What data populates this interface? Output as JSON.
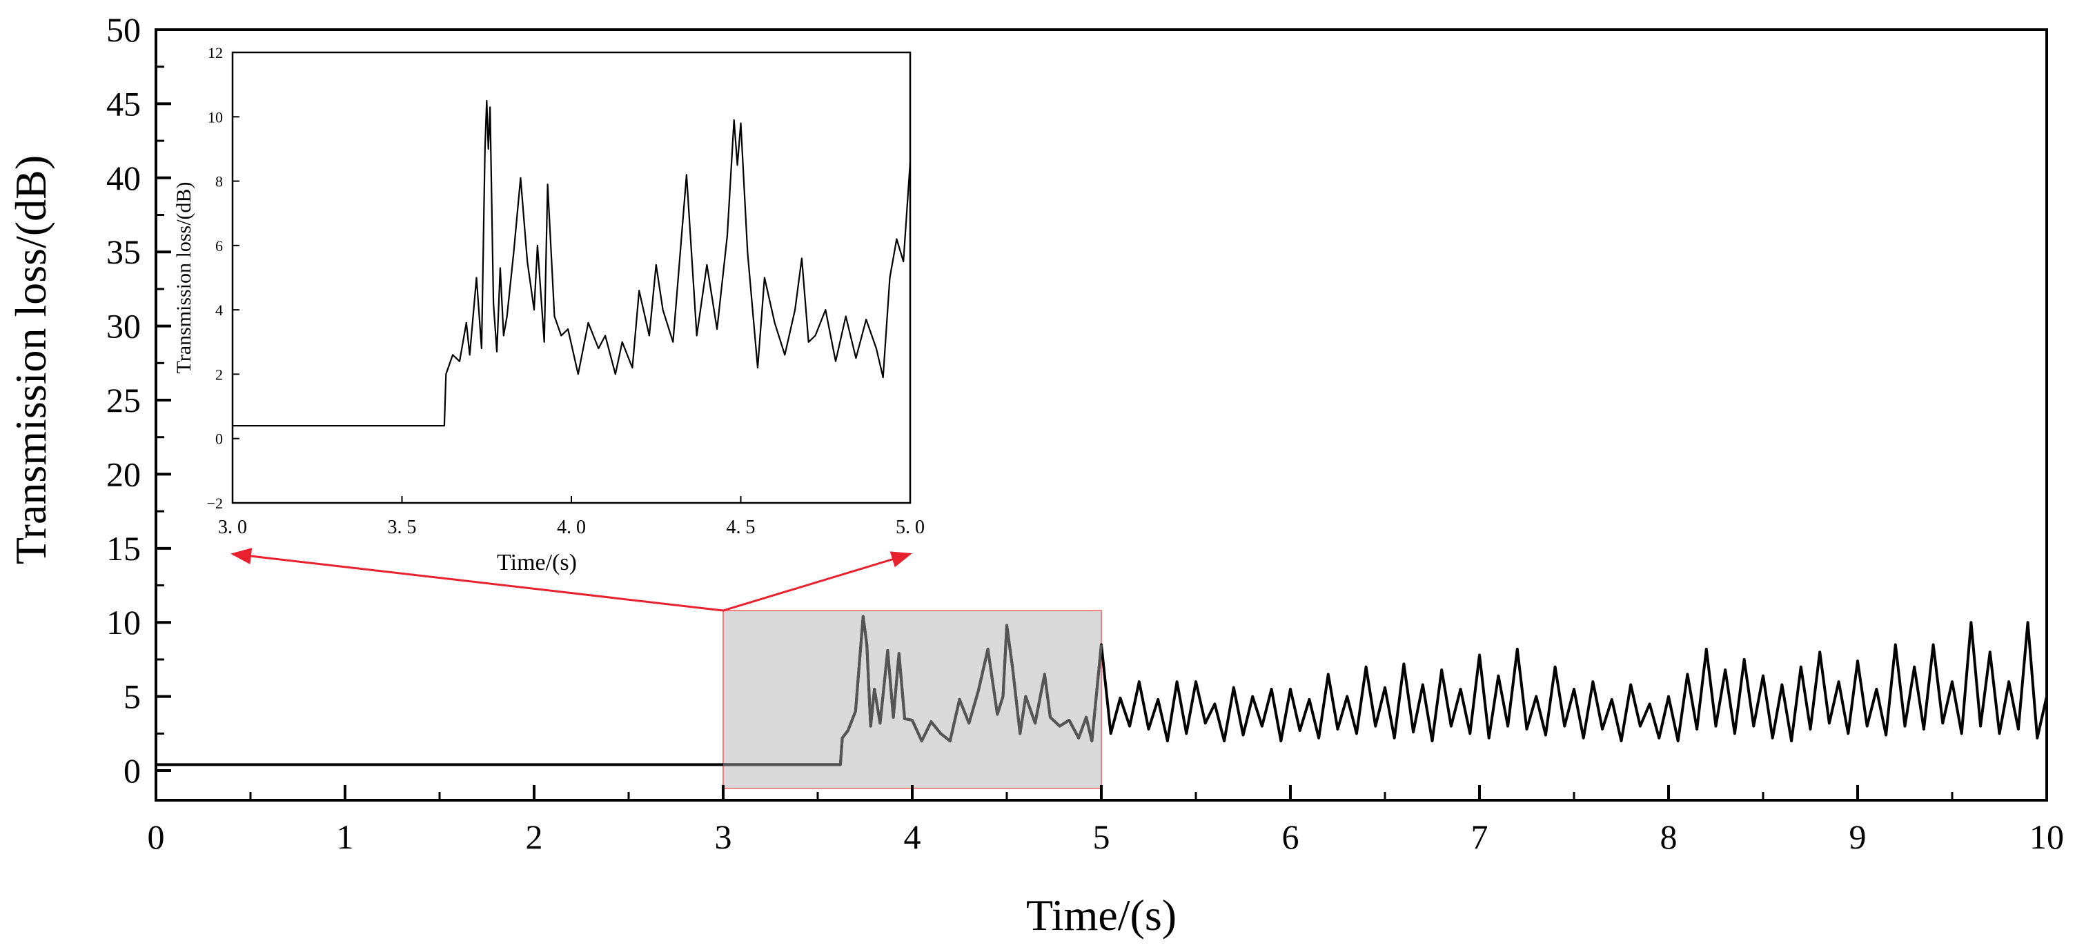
{
  "chart_data": [
    {
      "type": "line",
      "role": "main",
      "title": "",
      "xlabel": "Time/(s)",
      "ylabel": "Transmission loss/(dB)",
      "xlim": [
        0,
        10
      ],
      "ylim": [
        -2,
        50
      ],
      "xticks": [
        0,
        1,
        2,
        3,
        4,
        5,
        6,
        7,
        8,
        9,
        10
      ],
      "xtick_labels": [
        "0",
        "1",
        "2",
        "3",
        "4",
        "5",
        "6",
        "7",
        "8",
        "9",
        "10"
      ],
      "yticks": [
        0,
        5,
        10,
        15,
        20,
        25,
        30,
        35,
        40,
        45,
        50
      ],
      "ytick_labels": [
        "0",
        "5",
        "10",
        "15",
        "20",
        "25",
        "30",
        "35",
        "40",
        "45",
        "50"
      ],
      "grid": false,
      "series": [
        {
          "name": "Transmission loss",
          "color": "#000000",
          "x": [
            0,
            0.5,
            1.0,
            1.5,
            2.0,
            2.5,
            3.0,
            3.5,
            3.62,
            3.63,
            3.66,
            3.7,
            3.74,
            3.76,
            3.78,
            3.8,
            3.83,
            3.87,
            3.9,
            3.93,
            3.96,
            4.0,
            4.05,
            4.1,
            4.15,
            4.2,
            4.25,
            4.3,
            4.35,
            4.4,
            4.45,
            4.48,
            4.5,
            4.53,
            4.57,
            4.6,
            4.65,
            4.7,
            4.73,
            4.78,
            4.83,
            4.88,
            4.92,
            4.95,
            5.0,
            5.05,
            5.1,
            5.15,
            5.2,
            5.25,
            5.3,
            5.35,
            5.4,
            5.45,
            5.5,
            5.55,
            5.6,
            5.65,
            5.7,
            5.75,
            5.8,
            5.85,
            5.9,
            5.95,
            6.0,
            6.05,
            6.1,
            6.15,
            6.2,
            6.25,
            6.3,
            6.35,
            6.4,
            6.45,
            6.5,
            6.55,
            6.6,
            6.65,
            6.7,
            6.75,
            6.8,
            6.85,
            6.9,
            6.95,
            7.0,
            7.05,
            7.1,
            7.15,
            7.2,
            7.25,
            7.3,
            7.35,
            7.4,
            7.45,
            7.5,
            7.55,
            7.6,
            7.65,
            7.7,
            7.75,
            7.8,
            7.85,
            7.9,
            7.95,
            8.0,
            8.05,
            8.1,
            8.15,
            8.2,
            8.25,
            8.3,
            8.35,
            8.4,
            8.45,
            8.5,
            8.55,
            8.6,
            8.65,
            8.7,
            8.75,
            8.8,
            8.85,
            8.9,
            8.95,
            9.0,
            9.05,
            9.1,
            9.15,
            9.2,
            9.25,
            9.3,
            9.35,
            9.4,
            9.45,
            9.5,
            9.55,
            9.6,
            9.65,
            9.7,
            9.75,
            9.8,
            9.85,
            9.9,
            9.95,
            10.0
          ],
          "y": [
            0.4,
            0.4,
            0.4,
            0.4,
            0.4,
            0.4,
            0.4,
            0.4,
            0.4,
            2.2,
            2.7,
            4.0,
            10.4,
            8.5,
            3.0,
            5.5,
            3.2,
            8.1,
            3.6,
            7.9,
            3.5,
            3.4,
            2.0,
            3.3,
            2.5,
            2.0,
            4.8,
            3.2,
            5.4,
            8.2,
            3.8,
            5.0,
            9.8,
            7.0,
            2.5,
            5.0,
            3.2,
            6.5,
            3.6,
            3.0,
            3.4,
            2.2,
            3.6,
            2.0,
            8.5,
            2.5,
            4.9,
            3.0,
            6.0,
            2.8,
            4.8,
            2.0,
            6.0,
            2.5,
            6.0,
            3.2,
            4.5,
            2.0,
            5.6,
            2.4,
            5.0,
            3.0,
            5.5,
            2.0,
            5.5,
            2.7,
            4.8,
            2.2,
            6.5,
            2.8,
            5.0,
            2.5,
            7.0,
            3.0,
            5.6,
            2.2,
            7.2,
            2.6,
            5.8,
            2.0,
            6.8,
            3.0,
            5.5,
            2.5,
            7.8,
            2.2,
            6.4,
            3.0,
            8.2,
            2.8,
            5.0,
            2.4,
            7.0,
            3.0,
            5.5,
            2.2,
            6.0,
            2.8,
            4.8,
            2.0,
            5.8,
            3.0,
            4.5,
            2.2,
            5.0,
            2.0,
            6.5,
            2.8,
            8.2,
            3.0,
            6.8,
            2.5,
            7.5,
            3.0,
            6.4,
            2.2,
            5.8,
            2.0,
            7.0,
            2.8,
            8.0,
            3.2,
            6.0,
            2.5,
            7.4,
            3.0,
            5.5,
            2.4,
            8.5,
            3.0,
            7.0,
            2.8,
            8.5,
            3.2,
            6.0,
            2.5,
            10.0,
            3.0,
            8.0,
            2.5,
            6.0,
            2.8,
            10.0,
            2.2,
            5.0
          ]
        }
      ],
      "highlight_region": {
        "x_range": [
          3.0,
          5.0
        ],
        "y_range": [
          -1.2,
          10.8
        ],
        "fill": "#d9d9d9",
        "stroke": "#f08080"
      },
      "annotation_arrows": [
        {
          "from": [
            3.0,
            10.8
          ],
          "to_inset_x": 3.0,
          "color": "#e8212e"
        },
        {
          "from": [
            3.0,
            10.8
          ],
          "to_inset_x": 5.0,
          "color": "#e8212e"
        }
      ]
    },
    {
      "type": "line",
      "role": "inset",
      "title": "",
      "xlabel": "Time/(s)",
      "ylabel": "Transmission loss/(dB)",
      "xlim": [
        3.0,
        5.0
      ],
      "ylim": [
        -2,
        12
      ],
      "xticks": [
        3.0,
        3.5,
        4.0,
        4.5,
        5.0
      ],
      "xtick_labels": [
        "3. 0",
        "3. 5",
        "4. 0",
        "4. 5",
        "5. 0"
      ],
      "yticks": [
        -2,
        0,
        2,
        4,
        6,
        8,
        10,
        12
      ],
      "ytick_labels": [
        "−2",
        "0",
        "2",
        "4",
        "6",
        "8",
        "10",
        "12"
      ],
      "grid": false,
      "series": [
        {
          "name": "Transmission loss (zoom)",
          "color": "#000000",
          "x": [
            3.0,
            3.2,
            3.4,
            3.6,
            3.625,
            3.63,
            3.65,
            3.67,
            3.69,
            3.7,
            3.72,
            3.735,
            3.745,
            3.75,
            3.755,
            3.76,
            3.77,
            3.78,
            3.79,
            3.8,
            3.81,
            3.83,
            3.85,
            3.87,
            3.89,
            3.9,
            3.92,
            3.93,
            3.95,
            3.97,
            3.99,
            4.02,
            4.05,
            4.08,
            4.1,
            4.13,
            4.15,
            4.18,
            4.2,
            4.23,
            4.25,
            4.27,
            4.3,
            4.32,
            4.34,
            4.37,
            4.4,
            4.43,
            4.46,
            4.48,
            4.49,
            4.5,
            4.52,
            4.55,
            4.57,
            4.6,
            4.63,
            4.66,
            4.68,
            4.7,
            4.72,
            4.75,
            4.78,
            4.81,
            4.84,
            4.87,
            4.9,
            4.92,
            4.94,
            4.96,
            4.98,
            5.0
          ],
          "y": [
            0.4,
            0.4,
            0.4,
            0.4,
            0.4,
            2.0,
            2.6,
            2.4,
            3.6,
            2.6,
            5.0,
            2.8,
            9.0,
            10.5,
            9.0,
            10.3,
            4.2,
            2.7,
            5.3,
            3.2,
            3.8,
            5.8,
            8.1,
            5.5,
            4.0,
            6.0,
            3.0,
            7.9,
            3.8,
            3.2,
            3.4,
            2.0,
            3.6,
            2.8,
            3.2,
            2.0,
            3.0,
            2.2,
            4.6,
            3.2,
            5.4,
            4.0,
            3.0,
            5.6,
            8.2,
            3.2,
            5.4,
            3.4,
            6.3,
            9.9,
            8.5,
            9.8,
            5.8,
            2.2,
            5.0,
            3.6,
            2.6,
            4.0,
            5.6,
            3.0,
            3.2,
            4.0,
            2.4,
            3.8,
            2.5,
            3.7,
            2.8,
            1.9,
            5.0,
            6.2,
            5.5,
            8.6
          ]
        }
      ]
    }
  ]
}
